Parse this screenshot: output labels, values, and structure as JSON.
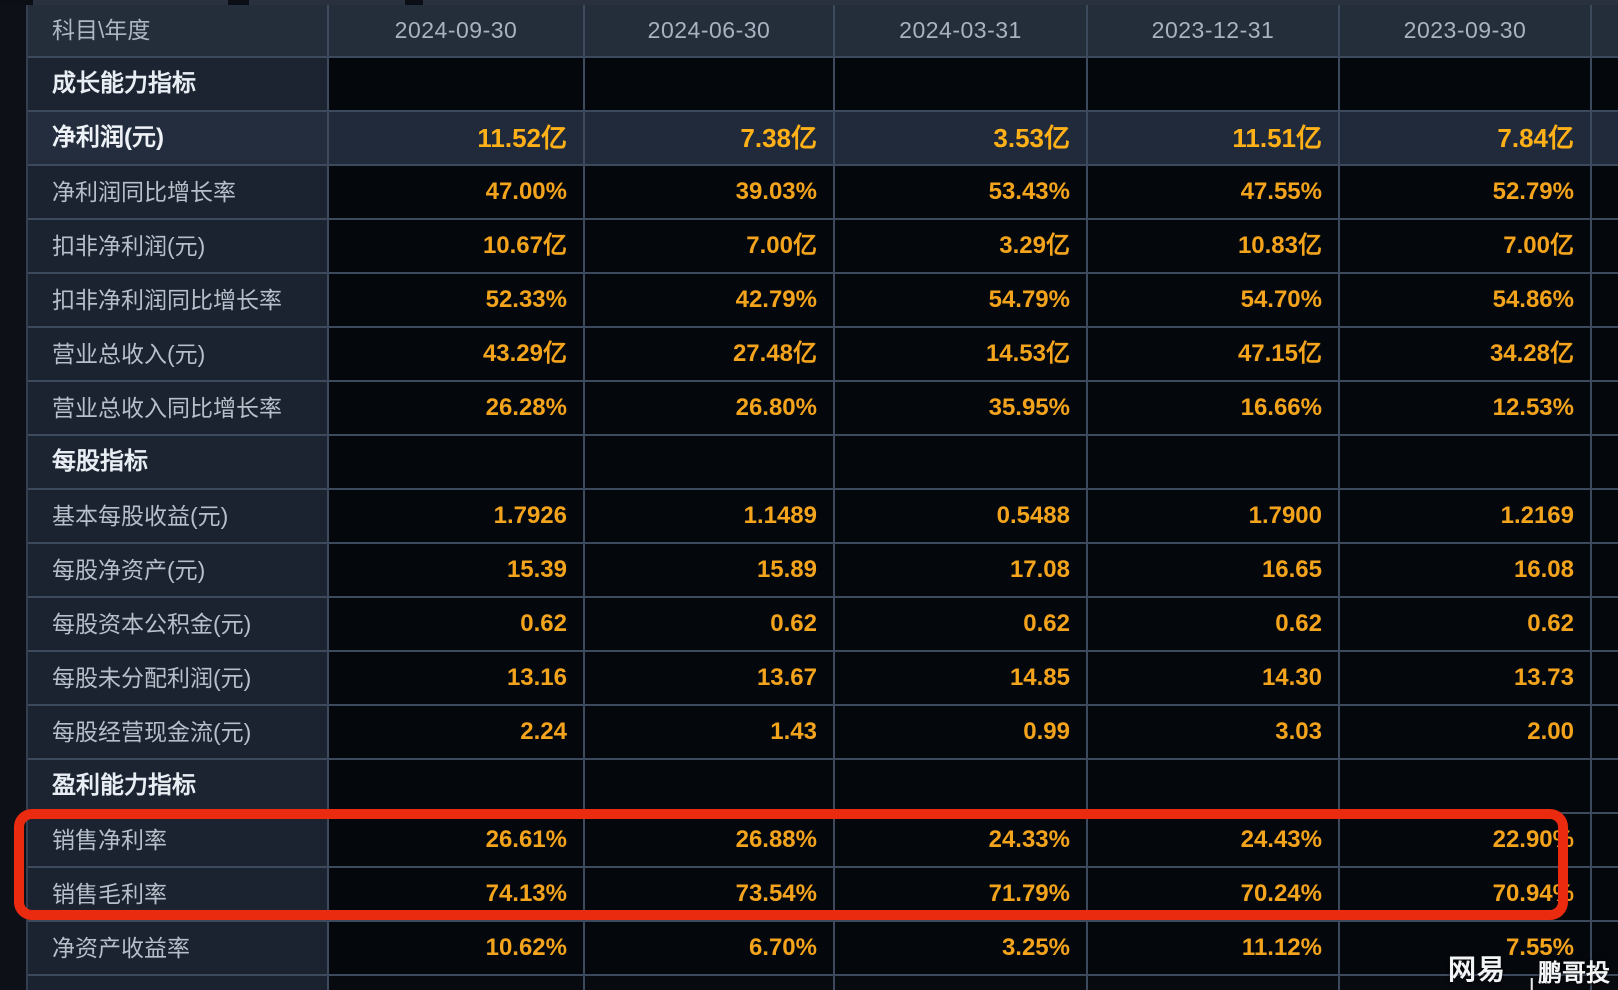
{
  "table": {
    "corner_label": "科目\\年度",
    "columns": [
      "2024-09-30",
      "2024-06-30",
      "2024-03-31",
      "2023-12-31",
      "2023-09-30"
    ],
    "rows": [
      {
        "label": "成长能力指标",
        "type": "section",
        "values": [
          "",
          "",
          "",
          "",
          ""
        ]
      },
      {
        "label": "净利润(元)",
        "type": "highlight",
        "values": [
          "11.52亿",
          "7.38亿",
          "3.53亿",
          "11.51亿",
          "7.84亿"
        ]
      },
      {
        "label": "净利润同比增长率",
        "type": "data",
        "values": [
          "47.00%",
          "39.03%",
          "53.43%",
          "47.55%",
          "52.79%"
        ]
      },
      {
        "label": "扣非净利润(元)",
        "type": "data",
        "values": [
          "10.67亿",
          "7.00亿",
          "3.29亿",
          "10.83亿",
          "7.00亿"
        ]
      },
      {
        "label": "扣非净利润同比增长率",
        "type": "data",
        "values": [
          "52.33%",
          "42.79%",
          "54.79%",
          "54.70%",
          "54.86%"
        ]
      },
      {
        "label": "营业总收入(元)",
        "type": "data",
        "values": [
          "43.29亿",
          "27.48亿",
          "14.53亿",
          "47.15亿",
          "34.28亿"
        ]
      },
      {
        "label": "营业总收入同比增长率",
        "type": "data",
        "values": [
          "26.28%",
          "26.80%",
          "35.95%",
          "16.66%",
          "12.53%"
        ]
      },
      {
        "label": "每股指标",
        "type": "section",
        "values": [
          "",
          "",
          "",
          "",
          ""
        ]
      },
      {
        "label": "基本每股收益(元)",
        "type": "data",
        "values": [
          "1.7926",
          "1.1489",
          "0.5488",
          "1.7900",
          "1.2169"
        ]
      },
      {
        "label": "每股净资产(元)",
        "type": "data",
        "values": [
          "15.39",
          "15.89",
          "17.08",
          "16.65",
          "16.08"
        ]
      },
      {
        "label": "每股资本公积金(元)",
        "type": "data",
        "values": [
          "0.62",
          "0.62",
          "0.62",
          "0.62",
          "0.62"
        ]
      },
      {
        "label": "每股未分配利润(元)",
        "type": "data",
        "values": [
          "13.16",
          "13.67",
          "14.85",
          "14.30",
          "13.73"
        ]
      },
      {
        "label": "每股经营现金流(元)",
        "type": "data",
        "values": [
          "2.24",
          "1.43",
          "0.99",
          "3.03",
          "2.00"
        ]
      },
      {
        "label": "盈利能力指标",
        "type": "section",
        "values": [
          "",
          "",
          "",
          "",
          ""
        ]
      },
      {
        "label": "销售净利率",
        "type": "data",
        "values": [
          "26.61%",
          "26.88%",
          "24.33%",
          "24.43%",
          "22.90%"
        ]
      },
      {
        "label": "销售毛利率",
        "type": "data",
        "values": [
          "74.13%",
          "73.54%",
          "71.79%",
          "70.24%",
          "70.94%"
        ]
      },
      {
        "label": "净资产收益率",
        "type": "data",
        "values": [
          "10.62%",
          "6.70%",
          "3.25%",
          "11.12%",
          "7.55%"
        ]
      }
    ]
  },
  "highlight_box": {
    "color": "#ea2b10",
    "highlighted_rows": [
      "销售净利率",
      "销售毛利率"
    ]
  },
  "watermark": {
    "brand": "网易号",
    "divider": "|",
    "author": "鹏哥投研"
  },
  "colors": {
    "value_orange": "#f3a41c",
    "bold_value_orange": "#ffb117",
    "annotation_red": "#ea2b10",
    "header_background": "#242d3a",
    "row_highlight_background": "#202a3a"
  }
}
